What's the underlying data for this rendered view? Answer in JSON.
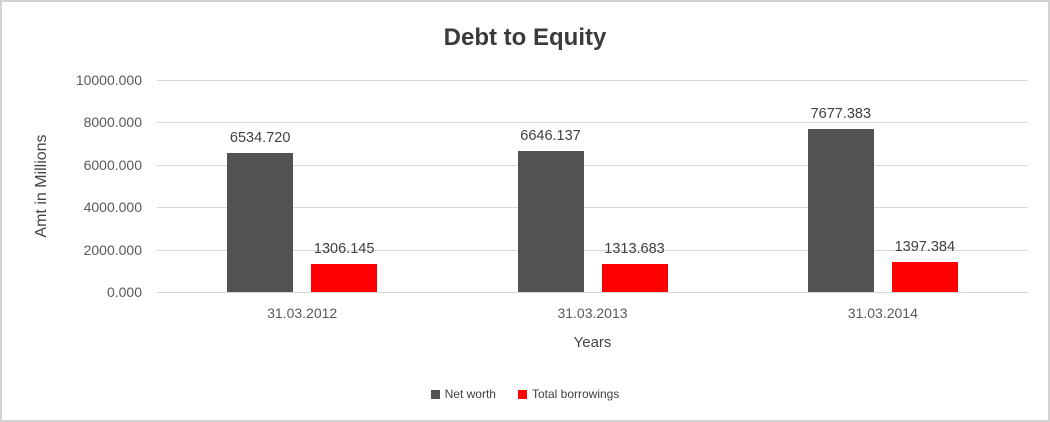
{
  "chart_data": {
    "type": "bar",
    "title": "Debt to Equity",
    "xlabel": "Years",
    "ylabel": "Amt in Millions",
    "categories": [
      "31.03.2012",
      "31.03.2013",
      "31.03.2014"
    ],
    "series": [
      {
        "name": "Net worth",
        "color": "#525252",
        "values": [
          6534.72,
          6646.137,
          7677.383
        ],
        "labels": [
          "6534.720",
          "6646.137",
          "7677.383"
        ]
      },
      {
        "name": "Total borrowings",
        "color": "#fe0000",
        "values": [
          1306.145,
          1313.683,
          1397.384
        ],
        "labels": [
          "1306.145",
          "1313.683",
          "1397.384"
        ]
      }
    ],
    "ylim": [
      0,
      10000
    ],
    "yticks": [
      {
        "value": 0,
        "label": "0.000"
      },
      {
        "value": 2000,
        "label": "2000.000"
      },
      {
        "value": 4000,
        "label": "4000.000"
      },
      {
        "value": 6000,
        "label": "6000.000"
      },
      {
        "value": 8000,
        "label": "8000.000"
      },
      {
        "value": 10000,
        "label": "10000.000"
      }
    ],
    "grid": true,
    "legend_position": "bottom"
  },
  "colors": {
    "grid": "#d9d9d9",
    "tick_text": "#595959",
    "data_label_text": "#404040",
    "title_text": "#3b3b3b",
    "frame_border": "#d2d2d2",
    "background": "#ffffff"
  }
}
